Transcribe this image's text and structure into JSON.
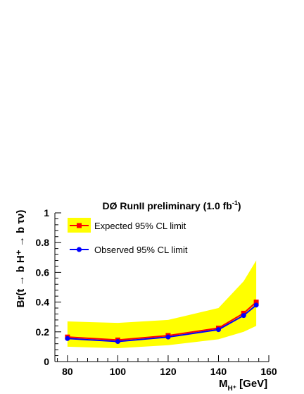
{
  "chart_data": {
    "type": "line",
    "title": "DØ RunII preliminary (1.0 fb",
    "title_sup": "-1",
    "title_close": ")",
    "ylabel": "Br(t → b H⁺ → b τν)",
    "xlabel_main": "M",
    "xlabel_sub": "H⁺",
    "xlabel_unit": " [GeV]",
    "xlim": [
      75,
      160
    ],
    "ylim": [
      0,
      1
    ],
    "x_ticks": [
      80,
      100,
      120,
      140,
      160
    ],
    "y_ticks": [
      0,
      0.2,
      0.4,
      0.6,
      0.8,
      1
    ],
    "y_tick_labels": [
      "0",
      "0.2",
      "0.4",
      "0.6",
      "0.8",
      "1"
    ],
    "x": [
      80,
      100,
      120,
      140,
      150,
      155
    ],
    "band": {
      "name": "",
      "color": "#ffff00",
      "upper": [
        0.27,
        0.26,
        0.28,
        0.36,
        0.54,
        0.68
      ],
      "lower": [
        0.1,
        0.09,
        0.11,
        0.15,
        0.2,
        0.24
      ]
    },
    "series": [
      {
        "name": "Expected 95% CL limit",
        "values": [
          0.165,
          0.145,
          0.175,
          0.225,
          0.325,
          0.4
        ],
        "color": "#ff0000",
        "marker": "square"
      },
      {
        "name": "Observed 95% CL limit",
        "values": [
          0.155,
          0.135,
          0.165,
          0.215,
          0.31,
          0.38
        ],
        "color": "#0000ff",
        "marker": "circle"
      }
    ],
    "legend_position": "top-left",
    "grid": false
  }
}
